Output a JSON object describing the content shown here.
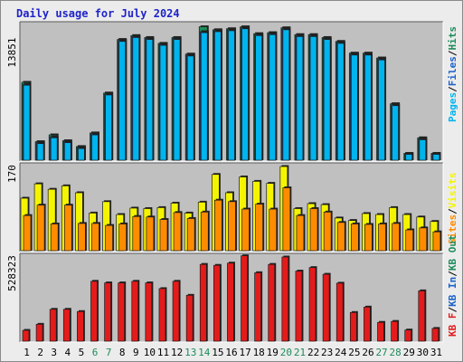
{
  "title": "Daily usage for July 2024",
  "colors": {
    "title": "#1f24c8",
    "pages": "#00b4ee",
    "files": "#1a62c8",
    "hits": "#1e8c5a",
    "visits": "#f4f400",
    "sites": "#ff8c00",
    "kbin": "#1a62c8",
    "kbout": "#1e8c5a",
    "kbf": "#e41b1b",
    "weekend": "#1e8c5a",
    "weekday": "#000000",
    "panel_bg": "#c0c0c0"
  },
  "chart_data": [
    {
      "type": "bar",
      "name_label": "Pages / Files / Hits",
      "legend": [
        {
          "label": "Pages",
          "color": "#00b4ee"
        },
        {
          "label": "Files",
          "color": "#1a62c8"
        },
        {
          "label": "Hits",
          "color": "#1e8c5a"
        }
      ],
      "ymax_label": "13851",
      "ylim": [
        0,
        13851
      ],
      "categories": [
        "1",
        "2",
        "3",
        "4",
        "5",
        "6",
        "7",
        "8",
        "9",
        "10",
        "11",
        "12",
        "13",
        "14",
        "15",
        "16",
        "17",
        "18",
        "19",
        "20",
        "21",
        "22",
        "23",
        "24",
        "25",
        "26",
        "27",
        "28",
        "29",
        "30",
        "31"
      ],
      "series": [
        {
          "name": "Hits",
          "values": [
            8000,
            1900,
            2600,
            2000,
            1400,
            2800,
            6900,
            12400,
            12800,
            12600,
            12000,
            12600,
            10900,
            13700,
            13400,
            13500,
            13700,
            13000,
            13100,
            13600,
            12900,
            12900,
            12600,
            12200,
            11000,
            11000,
            10500,
            5800,
            700,
            2300,
            700
          ]
        },
        {
          "name": "Files",
          "values": [
            7800,
            1800,
            2400,
            1900,
            1300,
            2700,
            6800,
            12300,
            12700,
            12500,
            11900,
            12500,
            10800,
            13200,
            13300,
            13400,
            13600,
            12900,
            13000,
            13500,
            12800,
            12800,
            12500,
            12100,
            10900,
            10900,
            10400,
            5700,
            650,
            2200,
            650
          ]
        },
        {
          "name": "Pages",
          "values": [
            7700,
            1700,
            2300,
            1800,
            1200,
            2600,
            6700,
            12200,
            12600,
            12400,
            11800,
            12400,
            10700,
            13100,
            13200,
            13300,
            13500,
            12800,
            12900,
            13400,
            12700,
            12700,
            12400,
            12000,
            10800,
            10800,
            10300,
            5600,
            600,
            2100,
            600
          ]
        }
      ]
    },
    {
      "type": "bar",
      "name_label": "Sites / Visits",
      "legend": [
        {
          "label": "Sites",
          "color": "#ff8c00"
        },
        {
          "label": "Visits",
          "color": "#f4f400"
        }
      ],
      "ymax_label": "170",
      "ylim": [
        0,
        170
      ],
      "categories": [
        "1",
        "2",
        "3",
        "4",
        "5",
        "6",
        "7",
        "8",
        "9",
        "10",
        "11",
        "12",
        "13",
        "14",
        "15",
        "16",
        "17",
        "18",
        "19",
        "20",
        "21",
        "22",
        "23",
        "24",
        "25",
        "26",
        "27",
        "28",
        "29",
        "30",
        "31"
      ],
      "series": [
        {
          "name": "Visits",
          "values": [
            106,
            135,
            124,
            131,
            117,
            76,
            99,
            73,
            86,
            85,
            87,
            96,
            76,
            98,
            154,
            117,
            149,
            140,
            136,
            170,
            85,
            95,
            93,
            66,
            61,
            75,
            73,
            87,
            73,
            68,
            59
          ]
        },
        {
          "name": "Sites",
          "values": [
            71,
            92,
            54,
            92,
            55,
            55,
            51,
            54,
            69,
            68,
            63,
            77,
            65,
            78,
            102,
            99,
            84,
            94,
            84,
            127,
            71,
            85,
            78,
            57,
            54,
            53,
            54,
            55,
            42,
            46,
            38
          ]
        }
      ]
    },
    {
      "type": "bar",
      "name_label": "KB F / KB In / KB Out",
      "legend": [
        {
          "label": "KB F",
          "color": "#e41b1b"
        },
        {
          "label": "KB In",
          "color": "#1a62c8"
        },
        {
          "label": "KB Out",
          "color": "#1e8c5a"
        }
      ],
      "ymax_label": "528323",
      "ylim": [
        0,
        528323
      ],
      "categories": [
        "1",
        "2",
        "3",
        "4",
        "5",
        "6",
        "7",
        "8",
        "9",
        "10",
        "11",
        "12",
        "13",
        "14",
        "15",
        "16",
        "17",
        "18",
        "19",
        "20",
        "21",
        "22",
        "23",
        "24",
        "25",
        "26",
        "27",
        "28",
        "29",
        "30",
        "31"
      ],
      "series": [
        {
          "name": "KB F",
          "values": [
            68000,
            106000,
            200000,
            200000,
            186000,
            376000,
            366000,
            366000,
            376000,
            366000,
            330000,
            376000,
            288000,
            482000,
            476000,
            490000,
            536000,
            430000,
            482000,
            528323,
            440000,
            462000,
            420000,
            364000,
            180000,
            214000,
            118000,
            124000,
            70000,
            316000,
            80000
          ]
        }
      ]
    }
  ],
  "x_axis": {
    "days": [
      {
        "label": "1",
        "weekend": false
      },
      {
        "label": "2",
        "weekend": false
      },
      {
        "label": "3",
        "weekend": false
      },
      {
        "label": "4",
        "weekend": false
      },
      {
        "label": "5",
        "weekend": false
      },
      {
        "label": "6",
        "weekend": true
      },
      {
        "label": "7",
        "weekend": true
      },
      {
        "label": "8",
        "weekend": false
      },
      {
        "label": "9",
        "weekend": false
      },
      {
        "label": "10",
        "weekend": false
      },
      {
        "label": "11",
        "weekend": false
      },
      {
        "label": "12",
        "weekend": false
      },
      {
        "label": "13",
        "weekend": true
      },
      {
        "label": "14",
        "weekend": true
      },
      {
        "label": "15",
        "weekend": false
      },
      {
        "label": "16",
        "weekend": false
      },
      {
        "label": "17",
        "weekend": false
      },
      {
        "label": "18",
        "weekend": false
      },
      {
        "label": "19",
        "weekend": false
      },
      {
        "label": "20",
        "weekend": true
      },
      {
        "label": "21",
        "weekend": true
      },
      {
        "label": "22",
        "weekend": false
      },
      {
        "label": "23",
        "weekend": false
      },
      {
        "label": "24",
        "weekend": false
      },
      {
        "label": "25",
        "weekend": false
      },
      {
        "label": "26",
        "weekend": false
      },
      {
        "label": "27",
        "weekend": true
      },
      {
        "label": "28",
        "weekend": true
      },
      {
        "label": "29",
        "weekend": false
      },
      {
        "label": "30",
        "weekend": false
      },
      {
        "label": "31",
        "weekend": false
      }
    ]
  }
}
